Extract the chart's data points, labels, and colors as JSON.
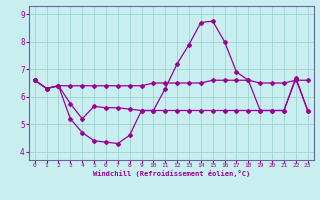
{
  "xlabel": "Windchill (Refroidissement éolien,°C)",
  "bg_color": "#c8eef0",
  "line_color": "#990099",
  "grid_color": "#99cccc",
  "spine_color": "#666699",
  "xlim": [
    -0.5,
    23.5
  ],
  "ylim": [
    3.7,
    9.3
  ],
  "yticks": [
    4,
    5,
    6,
    7,
    8,
    9
  ],
  "xticks": [
    0,
    1,
    2,
    3,
    4,
    5,
    6,
    7,
    8,
    9,
    10,
    11,
    12,
    13,
    14,
    15,
    16,
    17,
    18,
    19,
    20,
    21,
    22,
    23
  ],
  "line1_x": [
    0,
    1,
    2,
    3,
    4,
    5,
    6,
    7,
    8,
    9,
    10,
    11,
    12,
    13,
    14,
    15,
    16,
    17,
    18,
    19,
    20,
    21,
    22,
    23
  ],
  "line1_y": [
    6.6,
    6.3,
    6.4,
    6.4,
    6.4,
    6.4,
    6.4,
    6.4,
    6.4,
    6.4,
    6.5,
    6.5,
    6.5,
    6.5,
    6.5,
    6.6,
    6.6,
    6.6,
    6.6,
    6.5,
    6.5,
    6.5,
    6.6,
    6.6
  ],
  "line2_x": [
    0,
    1,
    2,
    3,
    4,
    5,
    6,
    7,
    8,
    9,
    10,
    11,
    12,
    13,
    14,
    15,
    16,
    17,
    18,
    19,
    20,
    21,
    22,
    23
  ],
  "line2_y": [
    6.6,
    6.3,
    6.4,
    5.2,
    4.7,
    4.4,
    4.35,
    4.3,
    4.6,
    5.5,
    5.5,
    6.3,
    7.2,
    7.9,
    8.7,
    8.75,
    8.0,
    6.9,
    6.6,
    5.5,
    5.5,
    5.5,
    6.7,
    5.5
  ],
  "line3_x": [
    0,
    1,
    2,
    3,
    4,
    5,
    6,
    7,
    8,
    9,
    10,
    11,
    12,
    13,
    14,
    15,
    16,
    17,
    18,
    19,
    20,
    21,
    22,
    23
  ],
  "line3_y": [
    6.6,
    6.3,
    6.4,
    5.75,
    5.2,
    5.65,
    5.6,
    5.6,
    5.55,
    5.5,
    5.5,
    5.5,
    5.5,
    5.5,
    5.5,
    5.5,
    5.5,
    5.5,
    5.5,
    5.5,
    5.5,
    5.5,
    6.65,
    5.5
  ],
  "marker": "D",
  "markersize": 2.0,
  "linewidth": 0.9,
  "tick_fontsize_x": 4.5,
  "tick_fontsize_y": 5.5,
  "xlabel_fontsize": 5.0
}
